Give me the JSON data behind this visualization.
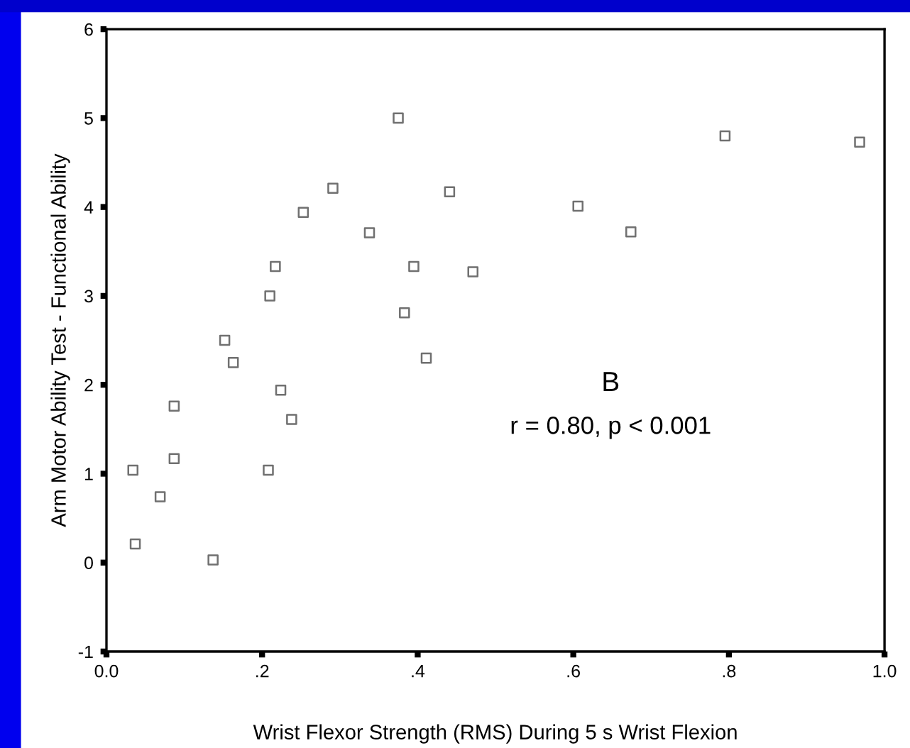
{
  "chart_data": {
    "type": "scatter",
    "xlabel": "Wrist Flexor Strength (RMS) During 5 s Wrist Flexion",
    "ylabel": "Arm Motor Ability Test - Functional Ability",
    "annotations": [
      "B",
      "r = 0.80, p < 0.001"
    ],
    "series": [
      {
        "color": "#707070",
        "x": [
          0.034,
          0.037,
          0.069,
          0.087,
          0.087,
          0.137,
          0.152,
          0.163,
          0.208,
          0.21,
          0.217,
          0.224,
          0.238,
          0.253,
          0.291,
          0.338,
          0.375,
          0.383,
          0.395,
          0.411,
          0.441,
          0.471,
          0.606,
          0.674,
          0.795,
          0.968
        ],
        "values": [
          1.04,
          0.21,
          0.74,
          1.76,
          1.17,
          0.03,
          2.5,
          2.25,
          1.04,
          3.0,
          3.33,
          1.94,
          1.61,
          3.94,
          4.21,
          3.71,
          5.0,
          2.81,
          3.33,
          2.3,
          4.17,
          3.27,
          4.01,
          3.72,
          4.8,
          4.73
        ]
      }
    ],
    "marker": "square",
    "xlim": [
      0,
      1.0
    ],
    "xticks": [
      {
        "value": 0,
        "label": "0.0"
      },
      {
        "value": 0.2,
        "label": ".2"
      },
      {
        "value": 0.4,
        "label": ".4"
      },
      {
        "value": 0.6,
        "label": ".6"
      },
      {
        "value": 0.8,
        "label": ".8"
      },
      {
        "value": 1.0,
        "label": "1.0"
      }
    ],
    "ylim": [
      -1,
      6
    ],
    "yticks": [
      -1,
      0,
      1,
      2,
      3,
      4,
      5,
      6
    ],
    "grid": false,
    "legend": false
  }
}
